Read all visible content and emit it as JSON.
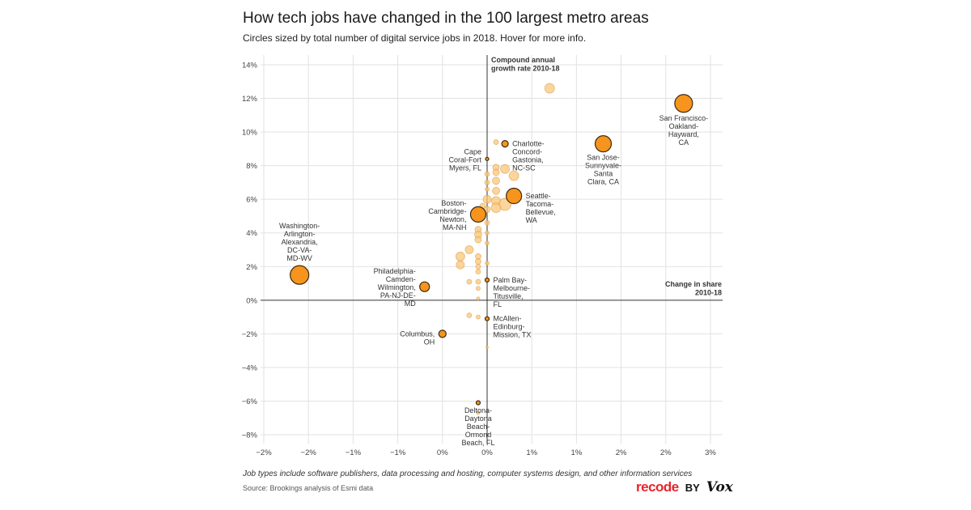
{
  "header": {
    "title": "How tech jobs have changed in the 100 largest metro areas",
    "subtitle": "Circles sized by total number of digital service jobs in 2018. Hover for more info."
  },
  "footer": {
    "note": "Job types include software publishers, data processing and hosting, computer systems design, and other information services",
    "source": "Source: Brookings analysis of Esmi data",
    "brand_recode": "recode",
    "brand_by": "BY",
    "brand_vox": "Vox"
  },
  "colors": {
    "highlight_fill": "#f7941d",
    "highlight_stroke": "#3a2a10",
    "minor_fill": "#f9c77a",
    "minor_stroke": "#d9953a",
    "grid": "#e2e2e2",
    "axis": "#333333"
  },
  "chart_data": {
    "type": "scatter",
    "title": "How tech jobs have changed in the 100 largest metro areas",
    "xlabel": "Change in share 2010-18",
    "ylabel": "Compound annual growth rate 2010-18",
    "xlim": [
      -0.5,
      0.53
    ],
    "ylim": [
      -8.5,
      14.5
    ],
    "x_ticks": [
      {
        "v": -0.5,
        "label": "−2%"
      },
      {
        "v": -0.4,
        "label": "−2%"
      },
      {
        "v": -0.3,
        "label": "−1%"
      },
      {
        "v": -0.2,
        "label": "−1%"
      },
      {
        "v": -0.1,
        "label": "0%"
      },
      {
        "v": 0.0,
        "label": "0%"
      },
      {
        "v": 0.1,
        "label": "1%"
      },
      {
        "v": 0.2,
        "label": "1%"
      },
      {
        "v": 0.3,
        "label": "2%"
      },
      {
        "v": 0.4,
        "label": "2%"
      },
      {
        "v": 0.5,
        "label": "3%"
      }
    ],
    "y_ticks": [
      {
        "v": 14,
        "label": "14%"
      },
      {
        "v": 12,
        "label": "12%"
      },
      {
        "v": 10,
        "label": "10%"
      },
      {
        "v": 8,
        "label": "8%"
      },
      {
        "v": 6,
        "label": "6%"
      },
      {
        "v": 4,
        "label": "4%"
      },
      {
        "v": 2,
        "label": "2%"
      },
      {
        "v": 0,
        "label": "0%"
      },
      {
        "v": -2,
        "label": "−2%"
      },
      {
        "v": -4,
        "label": "−4%"
      },
      {
        "v": -6,
        "label": "−6%"
      },
      {
        "v": -8,
        "label": "−8%"
      }
    ],
    "axis_labels": {
      "y": [
        "Compound annual",
        "growth rate 2010-18"
      ],
      "x": [
        "Change in share",
        "2010-18"
      ]
    },
    "grid": true,
    "highlighted": [
      {
        "name": "San Francisco-Oakland-Hayward, CA",
        "x": 0.44,
        "y": 11.7,
        "size": 11,
        "label_lines": [
          "San Francisco-",
          "Oakland-",
          "Hayward,",
          "CA"
        ],
        "label_pos": "below"
      },
      {
        "name": "San Jose-Sunnyvale-Santa Clara, CA",
        "x": 0.26,
        "y": 9.3,
        "size": 10,
        "label_lines": [
          "San Jose-",
          "Sunnyvale-",
          "Santa",
          "Clara, CA"
        ],
        "label_pos": "below"
      },
      {
        "name": "Charlotte-Concord-Gastonia, NC-SC",
        "x": 0.04,
        "y": 9.3,
        "size": 4,
        "label_lines": [
          "Charlotte-",
          "Concord-",
          "Gastonia,",
          "NC-SC"
        ],
        "label_pos": "right"
      },
      {
        "name": "Cape Coral-Fort Myers, FL",
        "x": 0.0,
        "y": 8.4,
        "size": 2,
        "label_lines": [
          "Cape",
          "Coral-Fort",
          "Myers, FL"
        ],
        "label_pos": "left"
      },
      {
        "name": "Seattle-Tacoma-Bellevue, WA",
        "x": 0.06,
        "y": 6.2,
        "size": 9.5,
        "label_lines": [
          "Seattle-",
          "Tacoma-",
          "Bellevue,",
          "WA"
        ],
        "label_pos": "right"
      },
      {
        "name": "Boston-Cambridge-Newton, MA-NH",
        "x": -0.02,
        "y": 5.1,
        "size": 9.5,
        "label_lines": [
          "Boston-",
          "Cambridge-",
          "Newton,",
          "MA-NH"
        ],
        "label_pos": "left"
      },
      {
        "name": "Washington-Arlington-Alexandria, DC-VA-MD-WV",
        "x": -0.42,
        "y": 1.5,
        "size": 11.5,
        "label_lines": [
          "Washington-",
          "Arlington-",
          "Alexandria,",
          "DC-VA-",
          "MD-WV"
        ],
        "label_pos": "above"
      },
      {
        "name": "Philadelphia-Camden-Wilmington, PA-NJ-DE-MD",
        "x": -0.14,
        "y": 0.8,
        "size": 6,
        "label_lines": [
          "Philadelphia-",
          "Camden-",
          "Wilmington,",
          "PA-NJ-DE-",
          "MD"
        ],
        "label_pos": "left"
      },
      {
        "name": "Palm Bay-Melbourne-Titusville, FL",
        "x": 0.0,
        "y": 1.2,
        "size": 2.5,
        "label_lines": [
          "Palm Bay-",
          "Melbourne-",
          "Titusville,",
          "FL"
        ],
        "label_pos": "right"
      },
      {
        "name": "McAllen-Edinburg-Mission, TX",
        "x": 0.0,
        "y": -1.1,
        "size": 2.5,
        "label_lines": [
          "McAllen-",
          "Edinburg-",
          "Mission, TX"
        ],
        "label_pos": "right"
      },
      {
        "name": "Columbus, OH",
        "x": -0.1,
        "y": -2.0,
        "size": 4.5,
        "label_lines": [
          "Columbus,",
          "OH"
        ],
        "label_pos": "left"
      },
      {
        "name": "Deltona-Daytona Beach-Ormond Beach, FL",
        "x": -0.02,
        "y": -6.1,
        "size": 2.5,
        "label_lines": [
          "Deltona-",
          "Daytona",
          "Beach-",
          "Ormond",
          "Beach, FL"
        ],
        "label_pos": "below"
      }
    ],
    "others": [
      {
        "x": 0.14,
        "y": 12.6,
        "size": 6
      },
      {
        "x": 0.02,
        "y": 9.4,
        "size": 3
      },
      {
        "x": 0.02,
        "y": 7.9,
        "size": 4
      },
      {
        "x": 0.04,
        "y": 7.8,
        "size": 5.5
      },
      {
        "x": 0.06,
        "y": 7.4,
        "size": 6
      },
      {
        "x": 0.02,
        "y": 7.6,
        "size": 4
      },
      {
        "x": 0.0,
        "y": 7.5,
        "size": 3
      },
      {
        "x": 0.02,
        "y": 7.1,
        "size": 4.5
      },
      {
        "x": 0.0,
        "y": 7.0,
        "size": 3
      },
      {
        "x": 0.02,
        "y": 6.5,
        "size": 4.5
      },
      {
        "x": 0.0,
        "y": 6.6,
        "size": 2.5
      },
      {
        "x": 0.0,
        "y": 6.0,
        "size": 5
      },
      {
        "x": 0.02,
        "y": 5.9,
        "size": 5.5
      },
      {
        "x": 0.04,
        "y": 5.7,
        "size": 7.5
      },
      {
        "x": 0.02,
        "y": 5.5,
        "size": 6
      },
      {
        "x": 0.0,
        "y": 5.4,
        "size": 4
      },
      {
        "x": -0.01,
        "y": 5.6,
        "size": 3.5
      },
      {
        "x": 0.0,
        "y": 4.6,
        "size": 3
      },
      {
        "x": 0.0,
        "y": 4.0,
        "size": 2.5
      },
      {
        "x": -0.02,
        "y": 4.2,
        "size": 4
      },
      {
        "x": -0.02,
        "y": 3.9,
        "size": 4.5
      },
      {
        "x": -0.02,
        "y": 3.6,
        "size": 4
      },
      {
        "x": 0.0,
        "y": 3.4,
        "size": 2.5
      },
      {
        "x": -0.04,
        "y": 3.0,
        "size": 5
      },
      {
        "x": -0.06,
        "y": 2.6,
        "size": 5.5
      },
      {
        "x": -0.06,
        "y": 2.1,
        "size": 5
      },
      {
        "x": -0.02,
        "y": 2.6,
        "size": 3.5
      },
      {
        "x": -0.02,
        "y": 2.3,
        "size": 3.5
      },
      {
        "x": -0.02,
        "y": 2.0,
        "size": 3
      },
      {
        "x": 0.0,
        "y": 2.2,
        "size": 2.5
      },
      {
        "x": -0.02,
        "y": 1.7,
        "size": 3
      },
      {
        "x": -0.04,
        "y": 1.1,
        "size": 3
      },
      {
        "x": -0.02,
        "y": 1.1,
        "size": 3
      },
      {
        "x": -0.02,
        "y": 0.7,
        "size": 2.5
      },
      {
        "x": -0.02,
        "y": 0.1,
        "size": 2
      },
      {
        "x": -0.04,
        "y": -0.9,
        "size": 3
      },
      {
        "x": -0.02,
        "y": -1.0,
        "size": 2.5
      },
      {
        "x": 0.0,
        "y": -2.8,
        "size": 1.5
      },
      {
        "x": -0.02,
        "y": -6.7,
        "size": 2
      }
    ]
  }
}
